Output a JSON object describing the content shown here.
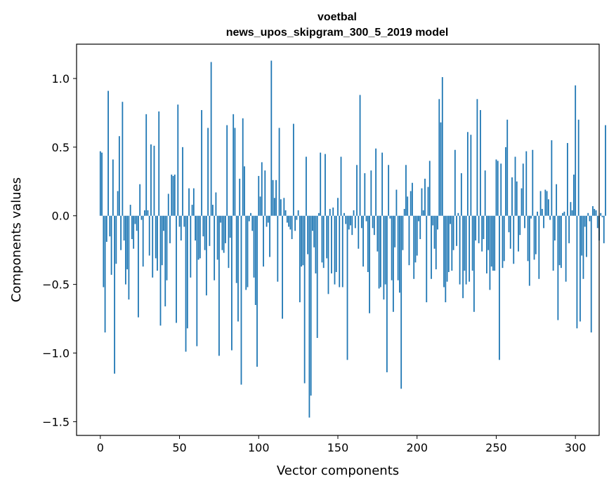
{
  "chart_data": {
    "type": "bar",
    "title": "voetbal",
    "subtitle": "news_upos_skipgram_300_5_2019 model",
    "xlabel": "Vector components",
    "ylabel": "Components values",
    "xlim": [
      -15,
      315
    ],
    "ylim": [
      -1.6,
      1.25
    ],
    "xticks": [
      0,
      50,
      100,
      150,
      200,
      250,
      300
    ],
    "xtick_labels": [
      "0",
      "50",
      "100",
      "150",
      "200",
      "250",
      "300"
    ],
    "yticks": [
      -1.5,
      -1.0,
      -0.5,
      0.0,
      0.5,
      1.0
    ],
    "ytick_labels": [
      "−1.5",
      "−1.0",
      "−0.5",
      "0.0",
      "0.5",
      "1.0"
    ],
    "bar_color": "#1f77b4",
    "series": [
      {
        "name": "voetbal",
        "x_start": 0,
        "values": [
          0.47,
          0.46,
          -0.52,
          -0.85,
          -0.19,
          0.91,
          -0.15,
          -0.43,
          0.41,
          -1.15,
          -0.35,
          0.18,
          0.58,
          -0.25,
          0.83,
          -0.18,
          -0.5,
          -0.39,
          -0.61,
          0.08,
          -0.17,
          -0.24,
          -0.06,
          -0.11,
          -0.74,
          0.23,
          -0.03,
          -0.37,
          0.04,
          0.74,
          0.04,
          -0.29,
          0.52,
          -0.45,
          0.51,
          -0.31,
          -0.4,
          0.76,
          -0.8,
          -0.36,
          -0.11,
          -0.66,
          -0.47,
          0.16,
          -0.2,
          0.3,
          0.29,
          0.3,
          -0.78,
          0.81,
          -0.08,
          -0.18,
          0.5,
          -0.08,
          -0.99,
          -0.82,
          0.2,
          -0.45,
          0.08,
          0.2,
          -0.18,
          -0.95,
          -0.32,
          -0.31,
          0.77,
          -0.15,
          -0.25,
          -0.58,
          0.64,
          -0.22,
          1.12,
          0.08,
          -0.47,
          0.17,
          -0.32,
          -1.02,
          -0.05,
          -0.25,
          -0.27,
          -0.2,
          0.66,
          -0.38,
          -0.16,
          -0.98,
          0.74,
          0.64,
          -0.49,
          -0.77,
          0.27,
          -1.23,
          0.71,
          0.36,
          -0.54,
          -0.52,
          -0.04,
          0.02,
          -0.11,
          -0.45,
          -0.65,
          -1.1,
          0.29,
          0.14,
          0.39,
          -0.37,
          0.33,
          -0.08,
          -0.05,
          -0.3,
          1.13,
          0.26,
          0.13,
          0.26,
          -0.48,
          0.64,
          0.12,
          -0.75,
          0.13,
          0.04,
          -0.05,
          -0.08,
          -0.1,
          -0.17,
          0.67,
          -0.11,
          -0.03,
          0.04,
          -0.63,
          -0.37,
          -0.36,
          -1.22,
          0.43,
          -0.28,
          -1.47,
          -1.31,
          -0.11,
          -0.23,
          -0.42,
          -0.89,
          0.02,
          0.46,
          -0.34,
          -0.38,
          0.45,
          -0.31,
          -0.57,
          0.05,
          -0.42,
          0.06,
          -0.5,
          -0.41,
          0.13,
          -0.52,
          0.43,
          -0.52,
          0.02,
          -0.06,
          -1.05,
          -0.1,
          -0.07,
          -0.14,
          0.04,
          -0.09,
          0.37,
          -0.24,
          0.88,
          -0.09,
          -0.37,
          0.31,
          -0.04,
          -0.41,
          -0.71,
          0.33,
          -0.09,
          -0.14,
          0.49,
          -0.26,
          -0.53,
          -0.52,
          0.46,
          -0.61,
          -0.5,
          -1.14,
          0.37,
          -0.02,
          -0.47,
          -0.7,
          -0.23,
          0.19,
          -0.47,
          -0.56,
          -1.26,
          -0.25,
          0.05,
          0.37,
          0.14,
          -0.36,
          0.18,
          0.24,
          -0.46,
          -0.34,
          -0.29,
          -0.04,
          -0.17,
          0.2,
          0.04,
          0.27,
          -0.63,
          0.21,
          0.4,
          -0.46,
          -0.07,
          -0.24,
          -0.39,
          -0.1,
          0.85,
          0.68,
          1.01,
          -0.52,
          -0.63,
          -0.48,
          -0.41,
          -0.06,
          -0.4,
          -0.25,
          0.48,
          -0.22,
          0.02,
          -0.5,
          0.31,
          -0.6,
          -0.4,
          -0.5,
          0.61,
          -0.48,
          0.59,
          -0.4,
          -0.7,
          -0.18,
          0.85,
          -0.2,
          0.77,
          -0.26,
          -0.17,
          0.33,
          -0.42,
          -0.25,
          -0.54,
          -0.37,
          -0.4,
          -0.4,
          0.41,
          0.4,
          -1.05,
          0.38,
          -0.38,
          -0.33,
          0.5,
          0.7,
          -0.12,
          -0.24,
          0.28,
          -0.35,
          0.43,
          0.25,
          -0.26,
          -0.14,
          0.2,
          0.38,
          -0.09,
          0.47,
          -0.33,
          -0.51,
          -0.02,
          0.48,
          -0.32,
          -0.28,
          0.03,
          -0.46,
          0.18,
          0.05,
          -0.09,
          0.19,
          0.18,
          0.12,
          -0.03,
          0.55,
          -0.4,
          -0.18,
          0.23,
          -0.76,
          -0.36,
          -0.38,
          0.02,
          0.03,
          -0.48,
          0.53,
          -0.2,
          0.1,
          0.04,
          0.3,
          0.95,
          -0.82,
          0.7,
          -0.77,
          -0.29,
          -0.46,
          -0.08,
          -0.3,
          0.02,
          -0.04,
          -0.85,
          0.07,
          0.05,
          0.04,
          -0.09,
          -0.18,
          0.02,
          -0.01,
          -0.2,
          0.66
        ]
      }
    ]
  }
}
